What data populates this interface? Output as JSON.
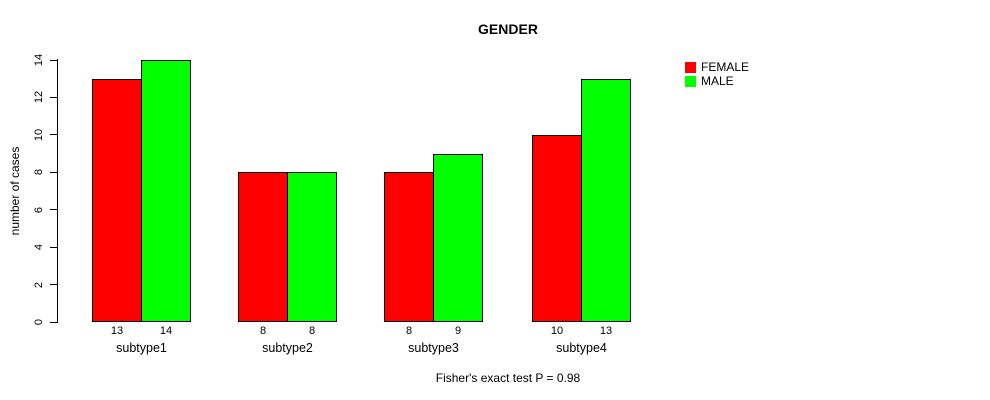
{
  "chart_data": {
    "type": "bar",
    "title": "GENDER",
    "ylabel": "number of cases",
    "xlabel": "",
    "footer": "Fisher's exact test P = 0.98",
    "categories": [
      "subtype1",
      "subtype2",
      "subtype3",
      "subtype4"
    ],
    "series": [
      {
        "name": "FEMALE",
        "color": "#ff0000",
        "values": [
          13,
          8,
          8,
          10
        ]
      },
      {
        "name": "MALE",
        "color": "#00ff00",
        "values": [
          14,
          8,
          9,
          13
        ]
      }
    ],
    "yticks": [
      0,
      2,
      4,
      6,
      8,
      10,
      12,
      14
    ],
    "ylim": [
      0,
      14
    ],
    "bar_value_labels": true,
    "legend_position": "top-right",
    "grid": false
  },
  "colors": {
    "female": "#ff0000",
    "male": "#00ff00",
    "axis": "#000000",
    "background": "#ffffff"
  }
}
